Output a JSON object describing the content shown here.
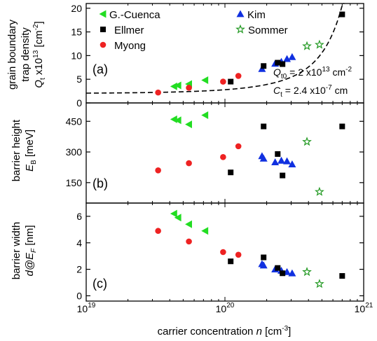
{
  "chart_data": {
    "type": "scatter",
    "x_scale": "log",
    "xlim": [
      1e+19,
      1e+21
    ],
    "xlabel": "carrier concentration n [cm-3]",
    "x_tick_labels": [
      "10^19",
      "10^20",
      "10^21"
    ],
    "legend": {
      "placement": "top-left",
      "entries": [
        {
          "name": "G.-Cuenca",
          "marker": "triangle-left",
          "color": "#22dd22"
        },
        {
          "name": "Kim",
          "marker": "triangle-up",
          "color": "#1030e0"
        },
        {
          "name": "Ellmer",
          "marker": "square",
          "color": "#000000"
        },
        {
          "name": "Sommer",
          "marker": "star",
          "color": "#229922"
        },
        {
          "name": "Myong",
          "marker": "circle",
          "color": "#ee2222"
        }
      ]
    },
    "panels": [
      {
        "panel_label": "(a)",
        "ylabel": "grain boundary trap density Qt x10^13 [cm-2]",
        "ylim": [
          0,
          21
        ],
        "yticks": [
          0,
          5,
          10,
          15,
          20
        ],
        "annotations": [
          "Qt0 = 2 x10^13 cm-2",
          "Ct = 2.4 x10^-7 cm"
        ],
        "fit_curve": {
          "style": "dashed",
          "color": "#000000",
          "description": "Qt = Qt0 * exp(Ct * n)"
        },
        "series": [
          {
            "name": "G.-Cuenca",
            "x": [
              4.3e+19,
              4.6e+19,
              5.5e+19,
              7.2e+19
            ],
            "y": [
              3.5,
              3.7,
              4.0,
              4.8
            ]
          },
          {
            "name": "Kim",
            "x": [
              1.85e+20,
              2.3e+20,
              2.55e+20,
              2.8e+20,
              3.05e+20
            ],
            "y": [
              7.2,
              8.3,
              8.7,
              9.3,
              9.7
            ]
          },
          {
            "name": "Ellmer",
            "x": [
              1.1e+20,
              1.9e+20,
              2.4e+20,
              2.6e+20,
              7e+20
            ],
            "y": [
              4.5,
              7.8,
              8.5,
              8.2,
              18.7
            ]
          },
          {
            "name": "Sommer",
            "x": [
              3.9e+20,
              4.8e+20
            ],
            "y": [
              12.0,
              12.3
            ]
          },
          {
            "name": "Myong",
            "x": [
              3.3e+19,
              5.5e+19,
              9.7e+19,
              1.25e+20
            ],
            "y": [
              2.2,
              3.2,
              4.5,
              5.7
            ]
          }
        ]
      },
      {
        "panel_label": "(b)",
        "ylabel": "barrier height EB [meV]",
        "ylim": [
          50,
          540
        ],
        "yticks": [
          150,
          300,
          450
        ],
        "series": [
          {
            "name": "G.-Cuenca",
            "x": [
              4.3e+19,
              4.6e+19,
              5.5e+19,
              7.2e+19
            ],
            "y": [
              460,
              455,
              435,
              480
            ]
          },
          {
            "name": "Kim",
            "x": [
              1.85e+20,
              1.9e+20,
              2.3e+20,
              2.55e+20,
              2.8e+20,
              3.05e+20
            ],
            "y": [
              280,
              268,
              250,
              258,
              255,
              240
            ]
          },
          {
            "name": "Ellmer",
            "x": [
              1.1e+20,
              1.9e+20,
              2.4e+20,
              2.6e+20,
              7e+20
            ],
            "y": [
              200,
              425,
              290,
              185,
              425
            ]
          },
          {
            "name": "Sommer",
            "x": [
              3.9e+20,
              4.8e+20
            ],
            "y": [
              350,
              105
            ]
          },
          {
            "name": "Myong",
            "x": [
              3.3e+19,
              5.5e+19,
              9.7e+19,
              1.25e+20
            ],
            "y": [
              210,
              245,
              275,
              328
            ]
          }
        ]
      },
      {
        "panel_label": "(c)",
        "ylabel": "barrier width d@EF [nm]",
        "ylim": [
          -0.4,
          7
        ],
        "yticks": [
          0,
          2,
          4,
          6
        ],
        "series": [
          {
            "name": "G.-Cuenca",
            "x": [
              4.3e+19,
              4.6e+19,
              5.5e+19,
              7.2e+19
            ],
            "y": [
              6.2,
              5.9,
              5.4,
              4.9
            ]
          },
          {
            "name": "Kim",
            "x": [
              1.85e+20,
              1.9e+20,
              2.3e+20,
              2.55e+20,
              2.8e+20,
              3.05e+20
            ],
            "y": [
              2.4,
              2.3,
              2.0,
              1.9,
              1.8,
              1.7
            ]
          },
          {
            "name": "Ellmer",
            "x": [
              1.1e+20,
              1.9e+20,
              2.4e+20,
              2.6e+20,
              7e+20
            ],
            "y": [
              2.6,
              2.9,
              2.1,
              1.7,
              1.5
            ]
          },
          {
            "name": "Sommer",
            "x": [
              3.9e+20,
              4.8e+20
            ],
            "y": [
              1.8,
              0.9
            ]
          },
          {
            "name": "Myong",
            "x": [
              3.3e+19,
              5.5e+19,
              9.7e+19,
              1.25e+20
            ],
            "y": [
              4.9,
              4.1,
              3.3,
              3.1
            ]
          }
        ]
      }
    ]
  }
}
